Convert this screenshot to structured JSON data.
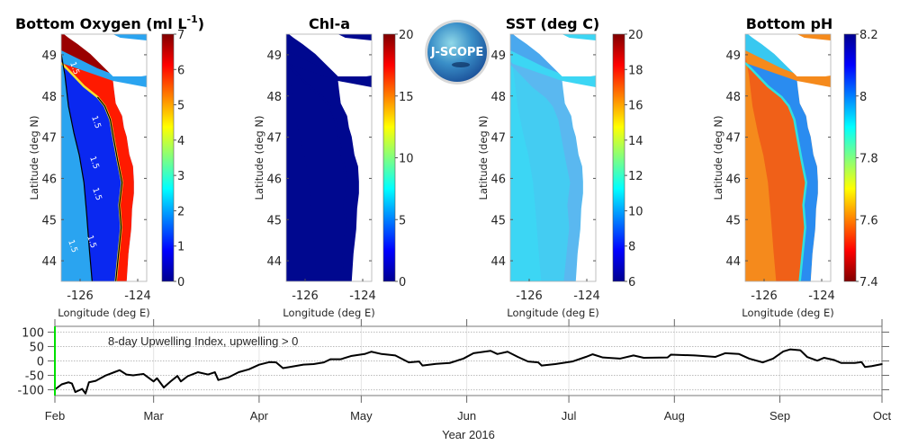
{
  "logo": {
    "text": "J-SCOPE"
  },
  "maps": [
    {
      "title": "Bottom Oxygen (ml L",
      "title_sup": "-1",
      "title_end": ")",
      "colormap": "jet",
      "colorbar_ticks": [
        "0",
        "1",
        "2",
        "3",
        "4",
        "5",
        "6",
        "7"
      ],
      "cb_min": 0,
      "cb_max": 7,
      "contour_label": "1.5"
    },
    {
      "title": "Chl-a",
      "title_sup": "",
      "title_end": "",
      "colormap": "jet",
      "colorbar_ticks": [
        "0",
        "5",
        "10",
        "15",
        "20"
      ],
      "cb_min": 0,
      "cb_max": 20
    },
    {
      "title": "SST (deg C)",
      "title_sup": "",
      "title_end": "",
      "colormap": "jet",
      "colorbar_ticks": [
        "6",
        "8",
        "10",
        "12",
        "14",
        "16",
        "18",
        "20"
      ],
      "cb_min": 6,
      "cb_max": 20
    },
    {
      "title": "Bottom pH",
      "title_sup": "",
      "title_end": "",
      "colormap": "jet-reversed",
      "colorbar_ticks": [
        "7.4",
        "7.6",
        "7.8",
        "8",
        "8.2"
      ],
      "cb_min": 7.4,
      "cb_max": 8.2
    }
  ],
  "map_axes": {
    "ylabel": "Latitude (deg N)",
    "xlabel": "Longitude (deg E)",
    "lat_ticks": [
      "49",
      "48",
      "47",
      "46",
      "45",
      "44"
    ],
    "lon_ticks": [
      "-126",
      "-124"
    ]
  },
  "chart_data": {
    "type": "line",
    "annotation": "8-day Upwelling Index, upwelling > 0",
    "xlabel": "Year 2016",
    "ylabel": "",
    "x_ticks": [
      "Feb",
      "Mar",
      "Apr",
      "May",
      "Jun",
      "Jul",
      "Aug",
      "Sep",
      "Oct"
    ],
    "x_tick_dates": [
      "2016-02-01",
      "2016-03-01",
      "2016-04-01",
      "2016-05-01",
      "2016-06-01",
      "2016-07-01",
      "2016-08-01",
      "2016-09-01",
      "2016-10-01"
    ],
    "xlim": [
      "2016-02-01",
      "2016-10-01"
    ],
    "y_ticks": [
      "100",
      "50",
      "0",
      "-50",
      "-100"
    ],
    "ylim": [
      -120,
      120
    ],
    "grid": true,
    "line_color": "#000000",
    "marker_line": {
      "date": "2016-02-01",
      "color": "#00e000"
    },
    "series": [
      {
        "x": [
          "2016-02-01",
          "2016-02-03",
          "2016-02-05",
          "2016-02-06",
          "2016-02-07",
          "2016-02-09",
          "2016-02-10",
          "2016-02-11",
          "2016-02-13",
          "2016-02-16",
          "2016-02-20",
          "2016-02-22",
          "2016-02-24",
          "2016-02-27",
          "2016-03-01",
          "2016-03-02",
          "2016-03-04",
          "2016-03-06",
          "2016-03-08",
          "2016-03-09",
          "2016-03-11",
          "2016-03-14",
          "2016-03-17",
          "2016-03-19",
          "2016-03-20",
          "2016-03-23",
          "2016-03-26",
          "2016-03-29",
          "2016-04-01",
          "2016-04-04",
          "2016-04-06",
          "2016-04-08",
          "2016-04-10",
          "2016-04-14",
          "2016-04-17",
          "2016-04-20",
          "2016-04-22",
          "2016-04-25",
          "2016-04-28",
          "2016-05-02",
          "2016-05-04",
          "2016-05-07",
          "2016-05-11",
          "2016-05-15",
          "2016-05-18",
          "2016-05-19",
          "2016-05-23",
          "2016-05-27",
          "2016-05-31",
          "2016-06-03",
          "2016-06-08",
          "2016-06-10",
          "2016-06-13",
          "2016-06-16",
          "2016-06-19",
          "2016-06-22",
          "2016-06-23",
          "2016-06-27",
          "2016-07-02",
          "2016-07-06",
          "2016-07-08",
          "2016-07-11",
          "2016-07-16",
          "2016-07-20",
          "2016-07-23",
          "2016-07-30",
          "2016-07-31",
          "2016-08-07",
          "2016-08-13",
          "2016-08-16",
          "2016-08-20",
          "2016-08-23",
          "2016-08-27",
          "2016-08-30",
          "2016-09-02",
          "2016-09-04",
          "2016-09-07",
          "2016-09-09",
          "2016-09-12",
          "2016-09-14",
          "2016-09-17",
          "2016-09-19",
          "2016-09-23",
          "2016-09-25",
          "2016-09-26",
          "2016-09-28",
          "2016-10-01"
        ],
        "y": [
          -99,
          -81,
          -74,
          -78,
          -108,
          -97,
          -113,
          -74,
          -69,
          -50,
          -32,
          -47,
          -50,
          -45,
          -71,
          -60,
          -92,
          -71,
          -52,
          -71,
          -53,
          -39,
          -47,
          -39,
          -66,
          -57,
          -39,
          -29,
          -13,
          -4,
          -5,
          -25,
          -21,
          -13,
          -11,
          -5,
          6,
          6,
          17,
          24,
          32,
          24,
          19,
          -5,
          -2,
          -16,
          -10,
          -7,
          8,
          27,
          35,
          24,
          32,
          14,
          -2,
          -5,
          -16,
          -11,
          -2,
          14,
          23,
          12,
          8,
          19,
          11,
          12,
          22,
          19,
          14,
          27,
          24,
          8,
          -5,
          8,
          33,
          40,
          37,
          14,
          1,
          11,
          3,
          -7,
          -7,
          -4,
          -21,
          -18,
          -11
        ]
      }
    ]
  }
}
